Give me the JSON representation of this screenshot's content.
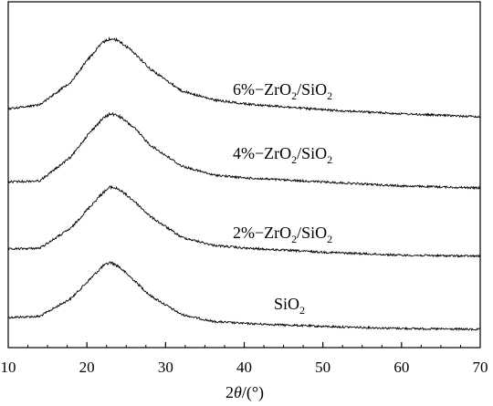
{
  "chart_data": {
    "type": "line",
    "title": "",
    "xlabel": {
      "prefix": "2",
      "italic": "θ",
      "suffix": "/(°)"
    },
    "ylabel": "",
    "xlim": [
      10,
      70
    ],
    "x_ticks": [
      10,
      20,
      30,
      40,
      50,
      60,
      70
    ],
    "grid": false,
    "legend": "none",
    "line_color": "#000000",
    "series": [
      {
        "label_parts": [
          "SiO",
          "2",
          ""
        ],
        "baseline": 0.0,
        "x": [
          10,
          14,
          18,
          20,
          22,
          23,
          24,
          26,
          28,
          32,
          36,
          40,
          50,
          60,
          70
        ],
        "y": [
          0.11,
          0.12,
          0.3,
          0.46,
          0.62,
          0.66,
          0.62,
          0.48,
          0.33,
          0.14,
          0.07,
          0.05,
          0.02,
          0.0,
          -0.01
        ]
      },
      {
        "label_parts": [
          "2%−ZrO",
          "2",
          "/SiO",
          "2"
        ],
        "baseline": 1.0,
        "x": [
          10,
          14,
          18,
          20,
          22,
          23,
          24,
          26,
          28,
          32,
          36,
          40,
          50,
          60,
          70
        ],
        "y": [
          0.09,
          0.1,
          0.3,
          0.48,
          0.65,
          0.71,
          0.69,
          0.57,
          0.42,
          0.21,
          0.13,
          0.1,
          0.06,
          0.03,
          0.02
        ]
      },
      {
        "label_parts": [
          "4%−ZrO",
          "2",
          "/SiO",
          "2"
        ],
        "baseline": 2.0,
        "x": [
          10,
          14,
          18,
          20,
          22,
          23,
          24,
          26,
          28,
          32,
          36,
          40,
          50,
          60,
          70
        ],
        "y": [
          0.06,
          0.07,
          0.31,
          0.52,
          0.69,
          0.74,
          0.72,
          0.6,
          0.43,
          0.22,
          0.13,
          0.1,
          0.06,
          0.02,
          0.0
        ]
      },
      {
        "label_parts": [
          "6%−ZrO",
          "2",
          "/SiO",
          "2"
        ],
        "baseline": 3.0,
        "x": [
          10,
          14,
          18,
          20,
          22,
          23,
          24,
          26,
          28,
          32,
          36,
          40,
          50,
          60,
          70
        ],
        "y": [
          0.08,
          0.12,
          0.35,
          0.56,
          0.74,
          0.78,
          0.76,
          0.64,
          0.48,
          0.26,
          0.17,
          0.13,
          0.07,
          0.03,
          0.0
        ]
      }
    ]
  }
}
